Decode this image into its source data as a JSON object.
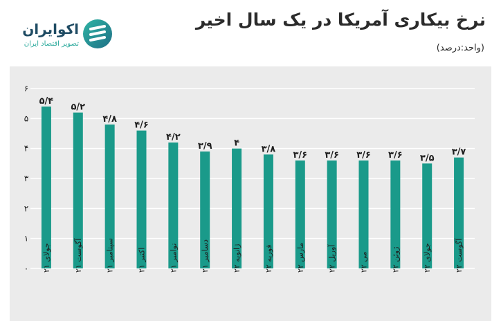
{
  "brand": {
    "name": "اکوایران",
    "tagline": "تصویر اقتصاد ایران",
    "logo_icon": "ecoiran-logo-icon"
  },
  "chart_data": {
    "type": "bar",
    "title": "نرخ بیکاری آمریکا در یک سال اخیر",
    "unit_note": "(واحد:درصد)",
    "categories": [
      "جولای ۲۱",
      "آگوست ۲۱",
      "سپتامبر ۲۱",
      "اکتبر ۲۱",
      "نوامبر ۲۱",
      "دسامبر ۲۱",
      "ژانویه ۲۲",
      "فوریه ۲۲",
      "مارس ۲۲",
      "آوریل ۲۲",
      "می ۲۲",
      "ژوئن ۲۲",
      "جولای ۲۲",
      "آگوست ۲۲"
    ],
    "values": [
      5.4,
      5.2,
      4.8,
      4.6,
      4.2,
      3.9,
      4.0,
      3.8,
      3.6,
      3.6,
      3.6,
      3.6,
      3.5,
      3.7
    ],
    "value_labels": [
      "۵/۴",
      "۵/۲",
      "۴/۸",
      "۴/۶",
      "۴/۲",
      "۳/۹",
      "۴",
      "۳/۸",
      "۳/۶",
      "۳/۶",
      "۳/۶",
      "۳/۶",
      "۳/۵",
      "۳/۷"
    ],
    "ylim": [
      0,
      6
    ],
    "yticks": [
      0,
      1,
      2,
      3,
      4,
      5,
      6
    ],
    "ytick_labels": [
      "۰",
      "۱",
      "۲",
      "۳",
      "۴",
      "۵",
      "۶"
    ],
    "grid": true,
    "colors": {
      "bar": "#1a9a8a",
      "grid": "#ffffff",
      "panel": "#ebebeb",
      "text": "#1f1f1f"
    }
  }
}
